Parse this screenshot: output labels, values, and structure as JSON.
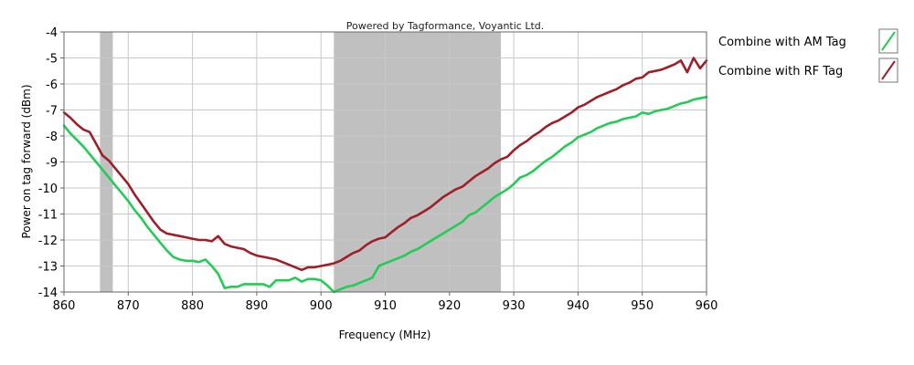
{
  "chart_data": {
    "type": "line",
    "title": "",
    "credit": "Powered by Tagformance, Voyantic Ltd.",
    "xlabel": "Frequency (MHz)",
    "ylabel": "Power on tag forward (dBm)",
    "xlim": [
      860,
      960
    ],
    "ylim": [
      -14,
      -4
    ],
    "xticks": [
      "860",
      "870",
      "880",
      "890",
      "900",
      "910",
      "920",
      "930",
      "940",
      "950",
      "960"
    ],
    "yticks": [
      "-4",
      "-5",
      "-6",
      "-7",
      "-8",
      "-9",
      "-10",
      "-11",
      "-12",
      "-13",
      "-14"
    ],
    "grid": true,
    "legend_position": "right",
    "shaded_bands": [
      [
        865.6,
        867.6
      ],
      [
        902,
        928
      ]
    ],
    "band_color": "#c0c0c0",
    "series": [
      {
        "name": "Combine with AM Tag",
        "color": "#22cc55",
        "x": [
          860,
          861,
          862,
          863,
          864,
          865,
          866,
          867,
          868,
          869,
          870,
          871,
          872,
          873,
          874,
          875,
          876,
          877,
          878,
          879,
          880,
          881,
          882,
          883,
          884,
          885,
          886,
          887,
          888,
          889,
          890,
          891,
          892,
          893,
          894,
          895,
          896,
          897,
          898,
          899,
          900,
          901,
          902,
          903,
          904,
          905,
          906,
          907,
          908,
          909,
          910,
          911,
          912,
          913,
          914,
          915,
          916,
          917,
          918,
          919,
          920,
          921,
          922,
          923,
          924,
          925,
          926,
          927,
          928,
          929,
          930,
          931,
          932,
          933,
          934,
          935,
          936,
          937,
          938,
          939,
          940,
          941,
          942,
          943,
          944,
          945,
          946,
          947,
          948,
          949,
          950,
          951,
          952,
          953,
          954,
          955,
          956,
          957,
          958,
          959,
          960
        ],
        "y": [
          -7.6,
          -7.9,
          -8.15,
          -8.4,
          -8.7,
          -9.0,
          -9.3,
          -9.6,
          -9.9,
          -10.2,
          -10.5,
          -10.85,
          -11.15,
          -11.5,
          -11.8,
          -12.1,
          -12.4,
          -12.65,
          -12.75,
          -12.8,
          -12.8,
          -12.85,
          -12.75,
          -13.0,
          -13.3,
          -13.85,
          -13.8,
          -13.8,
          -13.7,
          -13.7,
          -13.7,
          -13.7,
          -13.8,
          -13.55,
          -13.55,
          -13.55,
          -13.45,
          -13.6,
          -13.5,
          -13.5,
          -13.55,
          -13.75,
          -14.0,
          -13.9,
          -13.8,
          -13.75,
          -13.65,
          -13.55,
          -13.45,
          -13.0,
          -12.9,
          -12.8,
          -12.7,
          -12.6,
          -12.45,
          -12.35,
          -12.2,
          -12.05,
          -11.9,
          -11.75,
          -11.6,
          -11.45,
          -11.3,
          -11.05,
          -10.95,
          -10.75,
          -10.55,
          -10.35,
          -10.2,
          -10.05,
          -9.85,
          -9.6,
          -9.5,
          -9.35,
          -9.15,
          -8.95,
          -8.8,
          -8.6,
          -8.4,
          -8.25,
          -8.05,
          -7.95,
          -7.85,
          -7.7,
          -7.6,
          -7.5,
          -7.45,
          -7.35,
          -7.3,
          -7.25,
          -7.1,
          -7.15,
          -7.05,
          -7.0,
          -6.95,
          -6.85,
          -6.75,
          -6.7,
          -6.6,
          -6.55,
          -6.5
        ]
      },
      {
        "name": "Combine with RF Tag",
        "color": "#a01e28",
        "x": [
          860,
          861,
          862,
          863,
          864,
          865,
          866,
          867,
          868,
          869,
          870,
          871,
          872,
          873,
          874,
          875,
          876,
          877,
          878,
          879,
          880,
          881,
          882,
          883,
          884,
          885,
          886,
          887,
          888,
          889,
          890,
          891,
          892,
          893,
          894,
          895,
          896,
          897,
          898,
          899,
          900,
          901,
          902,
          903,
          904,
          905,
          906,
          907,
          908,
          909,
          910,
          911,
          912,
          913,
          914,
          915,
          916,
          917,
          918,
          919,
          920,
          921,
          922,
          923,
          924,
          925,
          926,
          927,
          928,
          929,
          930,
          931,
          932,
          933,
          934,
          935,
          936,
          937,
          938,
          939,
          940,
          941,
          942,
          943,
          944,
          945,
          946,
          947,
          948,
          949,
          950,
          951,
          952,
          953,
          954,
          955,
          956,
          957,
          958,
          959,
          960
        ],
        "y": [
          -7.1,
          -7.3,
          -7.55,
          -7.75,
          -7.85,
          -8.3,
          -8.75,
          -8.95,
          -9.25,
          -9.55,
          -9.85,
          -10.25,
          -10.6,
          -10.95,
          -11.3,
          -11.6,
          -11.75,
          -11.8,
          -11.85,
          -11.9,
          -11.95,
          -12.0,
          -12.0,
          -12.05,
          -11.85,
          -12.15,
          -12.25,
          -12.3,
          -12.35,
          -12.5,
          -12.6,
          -12.65,
          -12.7,
          -12.75,
          -12.85,
          -12.95,
          -13.05,
          -13.15,
          -13.05,
          -13.05,
          -13.0,
          -12.95,
          -12.9,
          -12.8,
          -12.65,
          -12.5,
          -12.4,
          -12.2,
          -12.05,
          -11.95,
          -11.9,
          -11.7,
          -11.5,
          -11.35,
          -11.15,
          -11.05,
          -10.9,
          -10.75,
          -10.55,
          -10.35,
          -10.2,
          -10.05,
          -9.95,
          -9.75,
          -9.55,
          -9.4,
          -9.25,
          -9.05,
          -8.9,
          -8.8,
          -8.55,
          -8.35,
          -8.2,
          -8.0,
          -7.85,
          -7.65,
          -7.5,
          -7.4,
          -7.25,
          -7.1,
          -6.9,
          -6.8,
          -6.65,
          -6.5,
          -6.4,
          -6.3,
          -6.2,
          -6.05,
          -5.95,
          -5.8,
          -5.75,
          -5.55,
          -5.5,
          -5.45,
          -5.35,
          -5.25,
          -5.1,
          -5.55,
          -5.0,
          -5.4,
          -5.1
        ]
      }
    ]
  }
}
